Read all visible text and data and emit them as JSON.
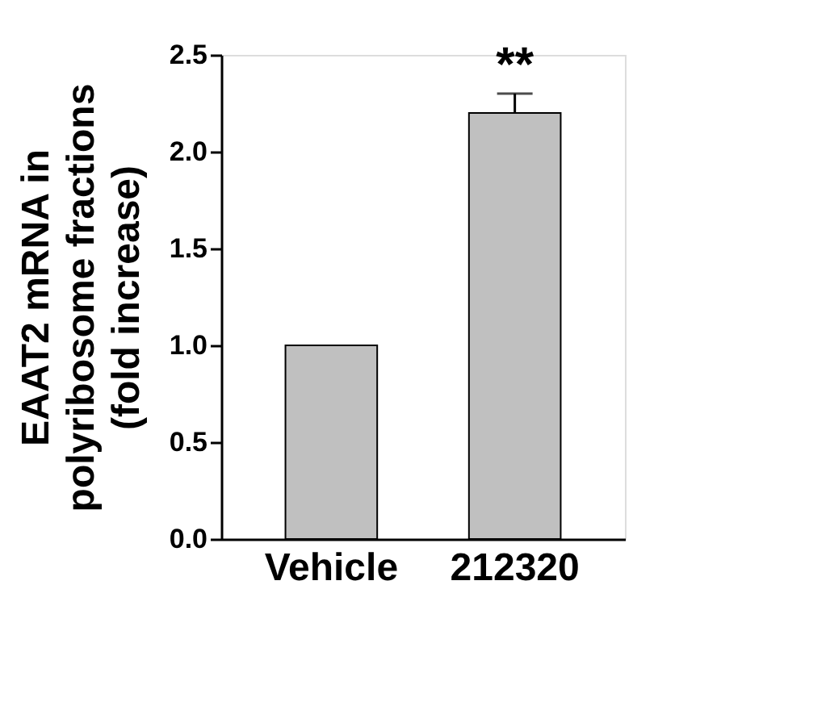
{
  "chart_data": {
    "type": "bar",
    "ylabel": "EAAT2 mRNA in\npolyribosome fractions\n(fold increase)",
    "categories": [
      "Vehicle",
      "212320"
    ],
    "values": [
      1.0,
      2.2
    ],
    "errors": [
      null,
      0.1
    ],
    "color": "#c0c0c0",
    "ylim": [
      0,
      2.5
    ],
    "yticks": [
      {
        "value": 0,
        "label": "0.0"
      },
      {
        "value": 0.5,
        "label": "0.5"
      },
      {
        "value": 1,
        "label": "1.0"
      },
      {
        "value": 1.5,
        "label": "1.5"
      },
      {
        "value": 2,
        "label": "2.0"
      },
      {
        "value": 2.5,
        "label": "2.5"
      }
    ],
    "annotations": [
      {
        "text": "**",
        "x": "212320",
        "y": 2.3
      }
    ],
    "grid": false
  }
}
